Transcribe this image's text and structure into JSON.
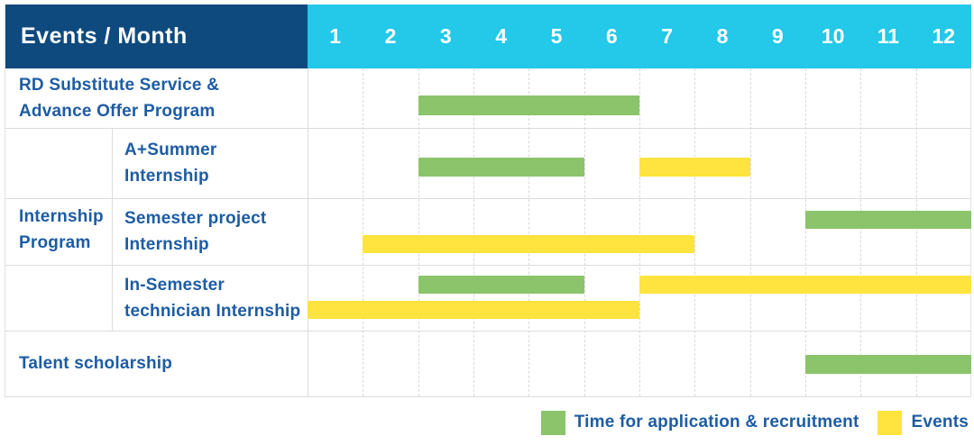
{
  "header": {
    "title": "Events / Month"
  },
  "colors": {
    "header_navy": "#0E4A7E",
    "header_cyan": "#24C8E8",
    "bar_green": "#8BC46A",
    "bar_yellow": "#FFE33F",
    "label_blue": "#1D5CA4",
    "grid_gray": "#DCDCDC"
  },
  "chart_data": {
    "type": "bar",
    "subtype": "gantt",
    "title": "Events / Month",
    "months": [
      "1",
      "2",
      "3",
      "4",
      "5",
      "6",
      "7",
      "8",
      "9",
      "10",
      "11",
      "12"
    ],
    "x_range": [
      1,
      12
    ],
    "grid": true,
    "legend_position": "bottom-right",
    "series": [
      {
        "key": "application",
        "label": "Time for application & recruitment",
        "color": "#8BC46A"
      },
      {
        "key": "events",
        "label": "Events",
        "color": "#FFE33F"
      }
    ],
    "row_group": {
      "label": "Internship\nProgram",
      "from_row": 1,
      "to_row": 3
    },
    "rows": [
      {
        "label": "RD Substitute Service &\nAdvance Offer Program",
        "group": "",
        "bars": [
          {
            "series": "application",
            "start_month": 3,
            "end_month": 6,
            "lane": 0
          }
        ]
      },
      {
        "label": "A+Summer\nInternship",
        "group": "Internship Program",
        "bars": [
          {
            "series": "application",
            "start_month": 3,
            "end_month": 5,
            "lane": 0
          },
          {
            "series": "events",
            "start_month": 7,
            "end_month": 8,
            "lane": 0
          }
        ]
      },
      {
        "label": "Semester project\nInternship",
        "group": "Internship Program",
        "bars": [
          {
            "series": "application",
            "start_month": 10,
            "end_month": 12,
            "lane": 0
          },
          {
            "series": "events",
            "start_month": 2,
            "end_month": 7,
            "lane": 1
          }
        ]
      },
      {
        "label": "In-Semester\ntechnician Internship",
        "group": "Internship Program",
        "bars": [
          {
            "series": "application",
            "start_month": 3,
            "end_month": 5,
            "lane": 0
          },
          {
            "series": "events",
            "start_month": 7,
            "end_month": 12,
            "lane": 0
          },
          {
            "series": "events",
            "start_month": 1,
            "end_month": 6,
            "lane": 1
          }
        ]
      },
      {
        "label": "Talent scholarship",
        "group": "",
        "bars": [
          {
            "series": "application",
            "start_month": 10,
            "end_month": 12,
            "lane": 0
          }
        ]
      }
    ],
    "legend": [
      {
        "series": "application",
        "label": "Time for application & recruitment"
      },
      {
        "series": "events",
        "label": "Events"
      }
    ]
  }
}
